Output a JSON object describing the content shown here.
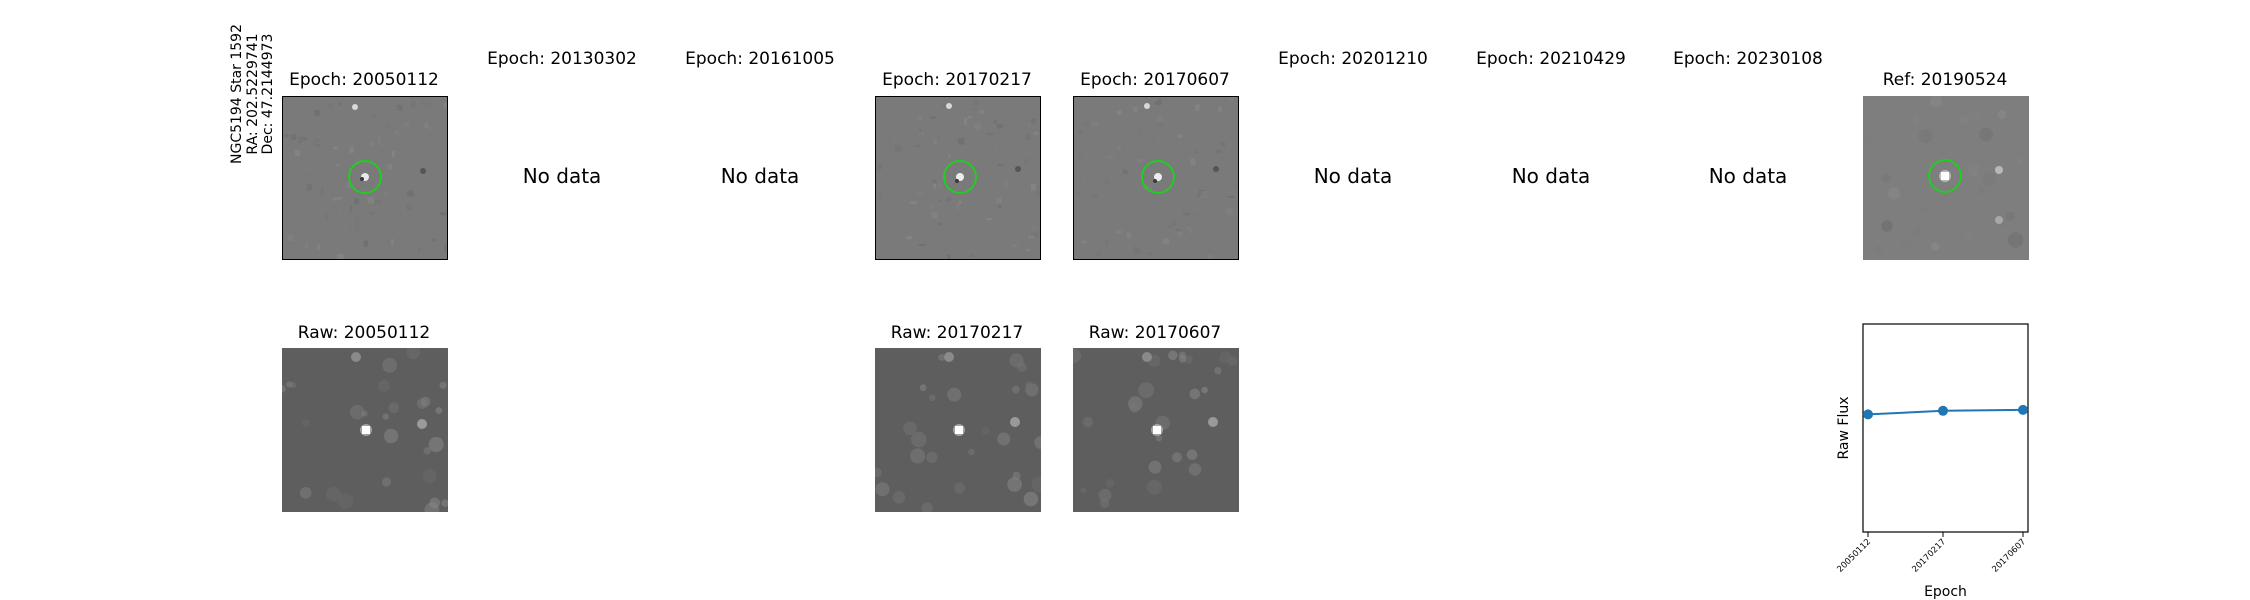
{
  "star": {
    "name": "NGC5194 Star 1592",
    "ra": "RA: 202.5229741",
    "dec": "Dec: 47.2144973"
  },
  "epochs": [
    {
      "title": "Epoch: 20050112",
      "has_data": true,
      "raw_title": "Raw: 20050112"
    },
    {
      "title": "Epoch: 20130302",
      "has_data": false,
      "no_data_label": "No data"
    },
    {
      "title": "Epoch: 20161005",
      "has_data": false,
      "no_data_label": "No data"
    },
    {
      "title": "Epoch: 20170217",
      "has_data": true,
      "raw_title": "Raw: 20170217"
    },
    {
      "title": "Epoch: 20170607",
      "has_data": true,
      "raw_title": "Raw: 20170607"
    },
    {
      "title": "Epoch: 20201210",
      "has_data": false,
      "no_data_label": "No data"
    },
    {
      "title": "Epoch: 20210429",
      "has_data": false,
      "no_data_label": "No data"
    },
    {
      "title": "Epoch: 20230108",
      "has_data": false,
      "no_data_label": "No data"
    }
  ],
  "reference": {
    "title": "Ref: 20190524"
  },
  "colors": {
    "circle": "#22cc22",
    "line": "#1f77b4",
    "diff_bg": "#7a7a7a",
    "raw_bg": "#5e5e5e"
  },
  "chart_data": {
    "type": "line",
    "x": [
      "20050112",
      "20170217",
      "20170607"
    ],
    "y": [
      0.4,
      0.44,
      0.45
    ],
    "ylim": [
      -0.9,
      1.4
    ],
    "xlabel": "Epoch",
    "ylabel": "Raw Flux"
  }
}
